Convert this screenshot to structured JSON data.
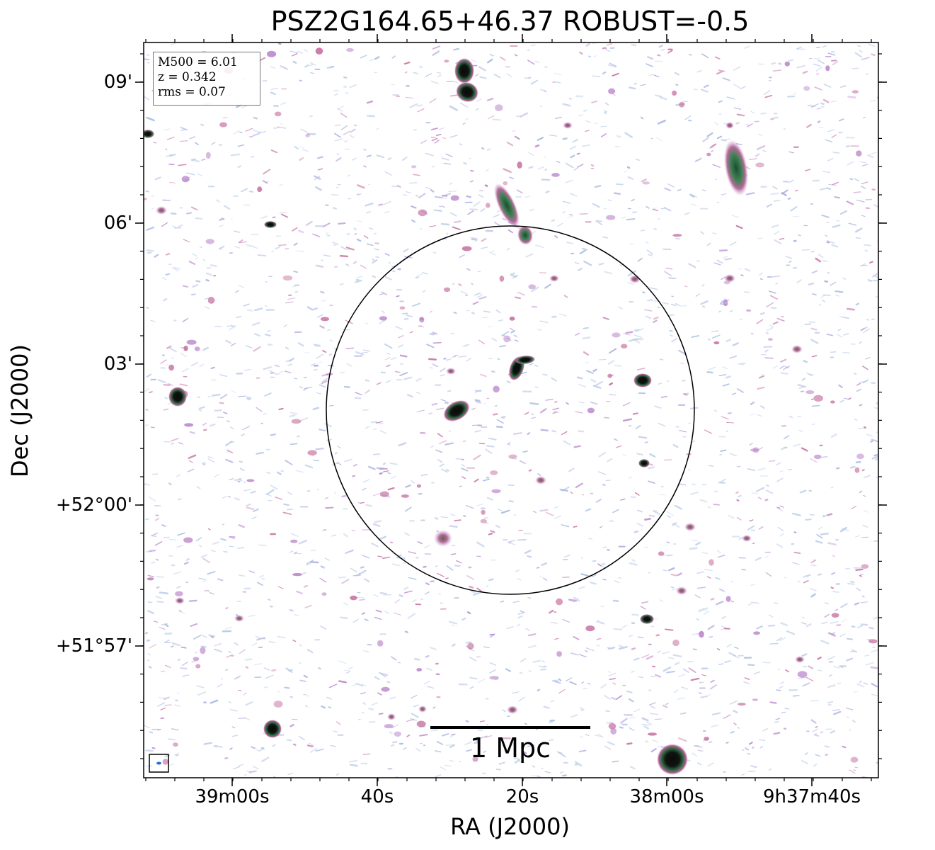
{
  "title": "PSZ2G164.65+46.37 ROBUST=-0.5",
  "xlabel": "RA (J2000)",
  "ylabel": "Dec (J2000)",
  "yticks": [
    "09'",
    "06'",
    "03'",
    "+52°00'",
    "+51°57'"
  ],
  "xticks": [
    "39m00s",
    "40s",
    "20s",
    "38m00s",
    "9h37m40s"
  ],
  "info": {
    "m500": "M500 = 6.01",
    "z": "z = 0.342",
    "rms": "rms = 0.07"
  },
  "scalebar": {
    "label": "1 Mpc"
  },
  "colors": {
    "background": "#ffffff",
    "noise_light": "#b9cbe8",
    "noise_mid": "#9fb4df",
    "purple": "#b77fc9",
    "magenta": "#c3679a",
    "green": "#3b7d4a",
    "dark": "#0a0a0a"
  }
}
